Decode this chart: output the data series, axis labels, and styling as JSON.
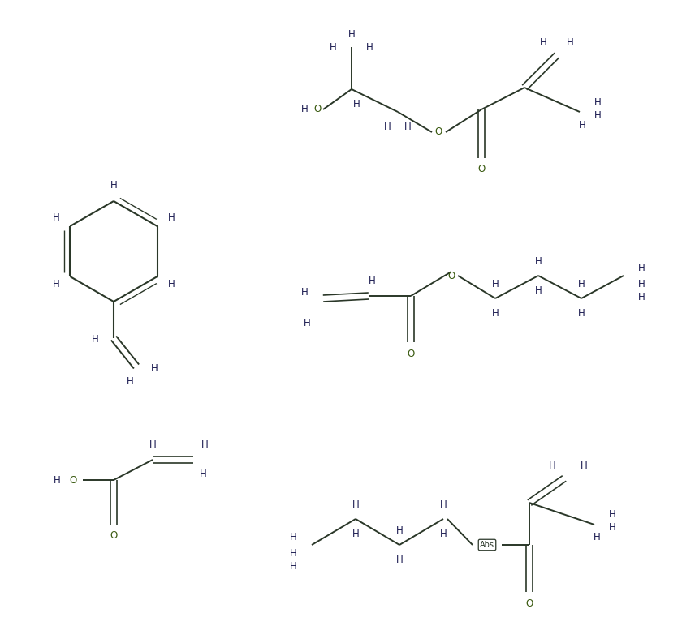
{
  "bg": "#ffffff",
  "bc": "#2a3728",
  "hc": "#1a1a50",
  "oc": "#3a5a10",
  "figsize": [
    8.4,
    7.93
  ],
  "dpi": 100,
  "xlim": [
    0,
    840
  ],
  "ylim": [
    0,
    793
  ]
}
